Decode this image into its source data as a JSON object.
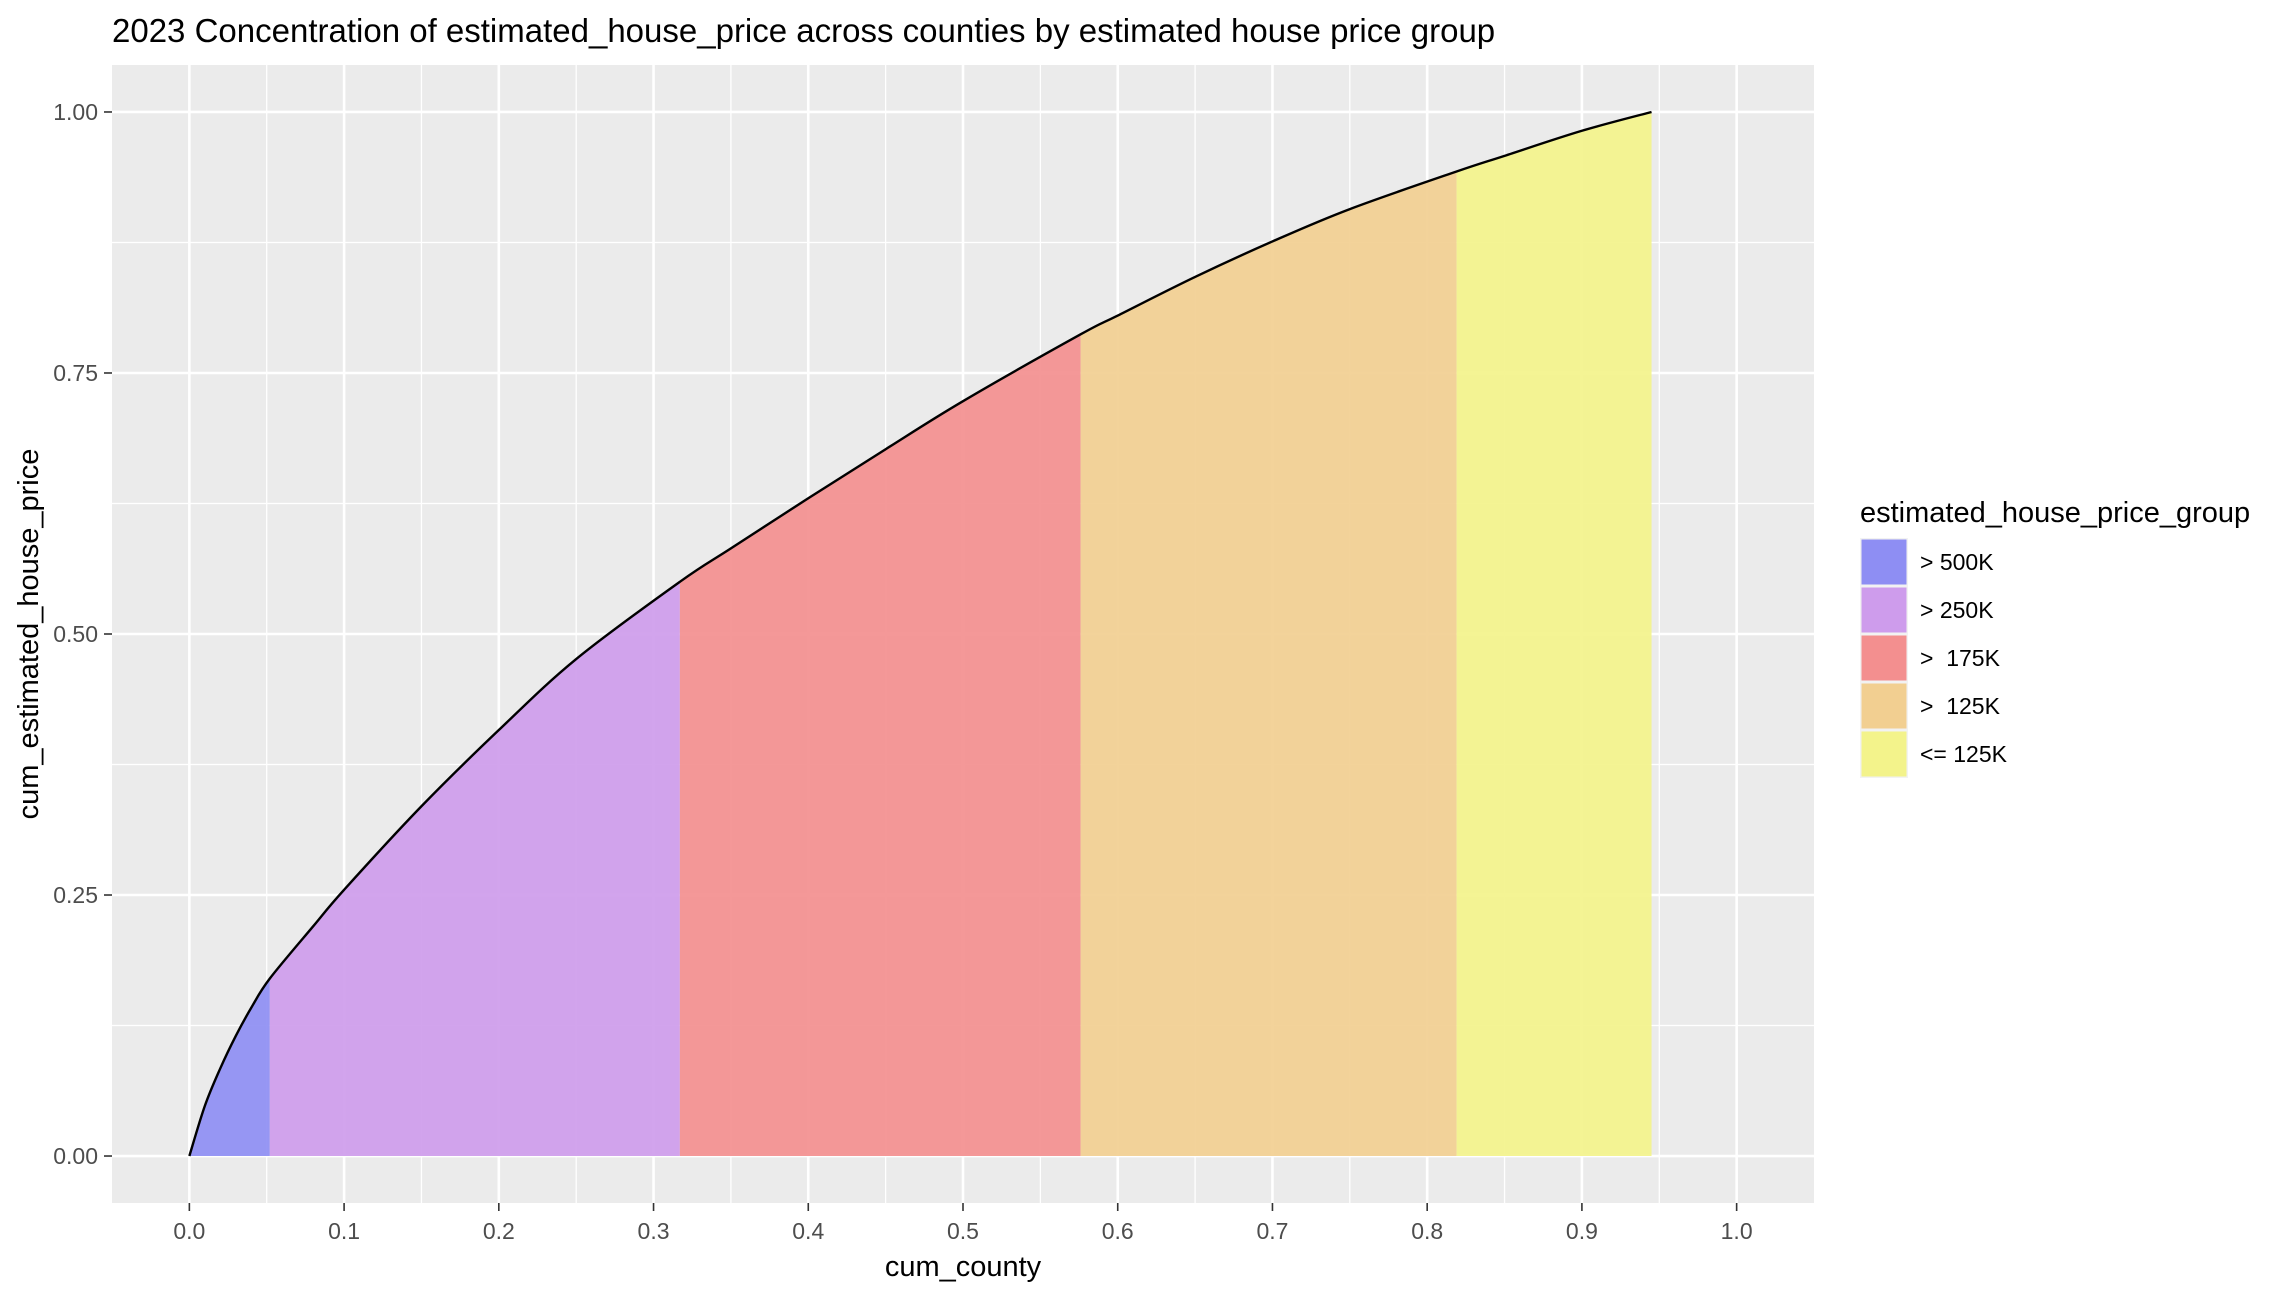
{
  "chart_data": {
    "type": "area",
    "title": "2023 Concentration of estimated_house_price across counties by estimated house price group",
    "xlabel": "cum_county",
    "ylabel": "cum_estimated_house_price",
    "xlim": [
      -0.05,
      1.05
    ],
    "ylim": [
      -0.045,
      1.045
    ],
    "x_ticks": [
      0.0,
      0.1,
      0.2,
      0.3,
      0.4,
      0.5,
      0.6,
      0.7,
      0.8,
      0.9,
      1.0
    ],
    "x_tick_labels": [
      "0.0",
      "0.1",
      "0.2",
      "0.3",
      "0.4",
      "0.5",
      "0.6",
      "0.7",
      "0.8",
      "0.9",
      "1.0"
    ],
    "y_ticks": [
      0.0,
      0.25,
      0.5,
      0.75,
      1.0
    ],
    "y_tick_labels": [
      "0.00",
      "0.25",
      "0.50",
      "0.75",
      "1.00"
    ],
    "grid": true,
    "panel_background": "#ebebeb",
    "grid_color": "#ffffff",
    "curve_color": "#000000",
    "legend": {
      "title": "estimated_house_price_group",
      "placement": "right"
    },
    "curve": {
      "x": [
        0.0,
        0.01,
        0.02,
        0.03,
        0.04,
        0.052,
        0.08,
        0.1,
        0.15,
        0.2,
        0.25,
        0.317,
        0.35,
        0.4,
        0.45,
        0.5,
        0.576,
        0.6,
        0.65,
        0.7,
        0.75,
        0.819,
        0.85,
        0.9,
        0.945
      ],
      "y": [
        0.0,
        0.048,
        0.084,
        0.115,
        0.142,
        0.17,
        0.22,
        0.255,
        0.335,
        0.408,
        0.476,
        0.55,
        0.582,
        0.63,
        0.677,
        0.723,
        0.787,
        0.805,
        0.842,
        0.876,
        0.907,
        0.943,
        0.958,
        0.982,
        1.0
      ]
    },
    "series": [
      {
        "name": "> 500K",
        "color": "#8e8ef3",
        "x_start": 0.0,
        "x_end": 0.052
      },
      {
        "name": "> 250K",
        "color": "#ce9cec",
        "x_start": 0.052,
        "x_end": 0.317
      },
      {
        "name": ">  175K",
        "color": "#f38f8f",
        "x_start": 0.317,
        "x_end": 0.576
      },
      {
        "name": ">  125K",
        "color": "#f2cf91",
        "x_start": 0.576,
        "x_end": 0.819
      },
      {
        "name": "<= 125K",
        "color": "#f3f38b",
        "x_start": 0.819,
        "x_end": 0.945
      }
    ]
  }
}
